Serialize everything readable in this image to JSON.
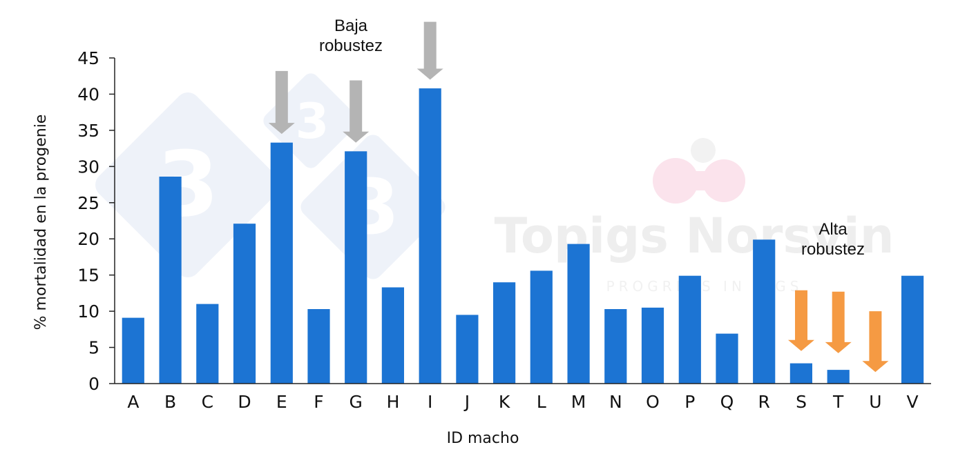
{
  "colors": {
    "bar": "#1c74d3",
    "low_arrow": "#b4b4b4",
    "high_arrow": "#f59a43",
    "axis": "#222222",
    "watermark_diamond": "#eef2f9",
    "watermark_logo_pink": "#fbe3ec",
    "watermark_text": "#eeeeee"
  },
  "watermark": {
    "brand": "Topigs Norsvin",
    "tagline": "PROGRESS IN PIGS",
    "diamond_glyph": "3"
  },
  "chart_data": {
    "type": "bar",
    "xlabel": "ID macho",
    "ylabel": "% mortalidad en la progenie",
    "ylim": [
      0,
      45
    ],
    "yticks": [
      0,
      5,
      10,
      15,
      20,
      25,
      30,
      35,
      40,
      45
    ],
    "grid": false,
    "legend": "none",
    "categories": [
      "A",
      "B",
      "C",
      "D",
      "E",
      "F",
      "G",
      "H",
      "I",
      "J",
      "K",
      "L",
      "M",
      "N",
      "O",
      "P",
      "Q",
      "R",
      "S",
      "T",
      "U",
      "V"
    ],
    "values": [
      9.1,
      28.6,
      11.0,
      22.1,
      33.3,
      10.3,
      32.1,
      13.3,
      40.8,
      9.5,
      14.0,
      15.6,
      19.3,
      10.3,
      10.5,
      14.9,
      6.9,
      19.9,
      2.8,
      1.9,
      0.0,
      14.9
    ],
    "annotations": [
      {
        "text_lines": [
          "Baja",
          "robustez"
        ],
        "group": "low"
      },
      {
        "text_lines": [
          "Alta",
          "robustez"
        ],
        "group": "high"
      }
    ],
    "arrows": [
      {
        "category": "E",
        "group": "low",
        "top": 43.2,
        "tip": 34.5
      },
      {
        "category": "G",
        "group": "low",
        "top": 41.9,
        "tip": 33.3
      },
      {
        "category": "I",
        "group": "low",
        "top": 50.0,
        "tip": 42.0
      },
      {
        "category": "S",
        "group": "high",
        "top": 12.9,
        "tip": 4.5
      },
      {
        "category": "T",
        "group": "high",
        "top": 12.7,
        "tip": 4.2
      },
      {
        "category": "U",
        "group": "high",
        "top": 10.0,
        "tip": 1.6
      }
    ]
  }
}
